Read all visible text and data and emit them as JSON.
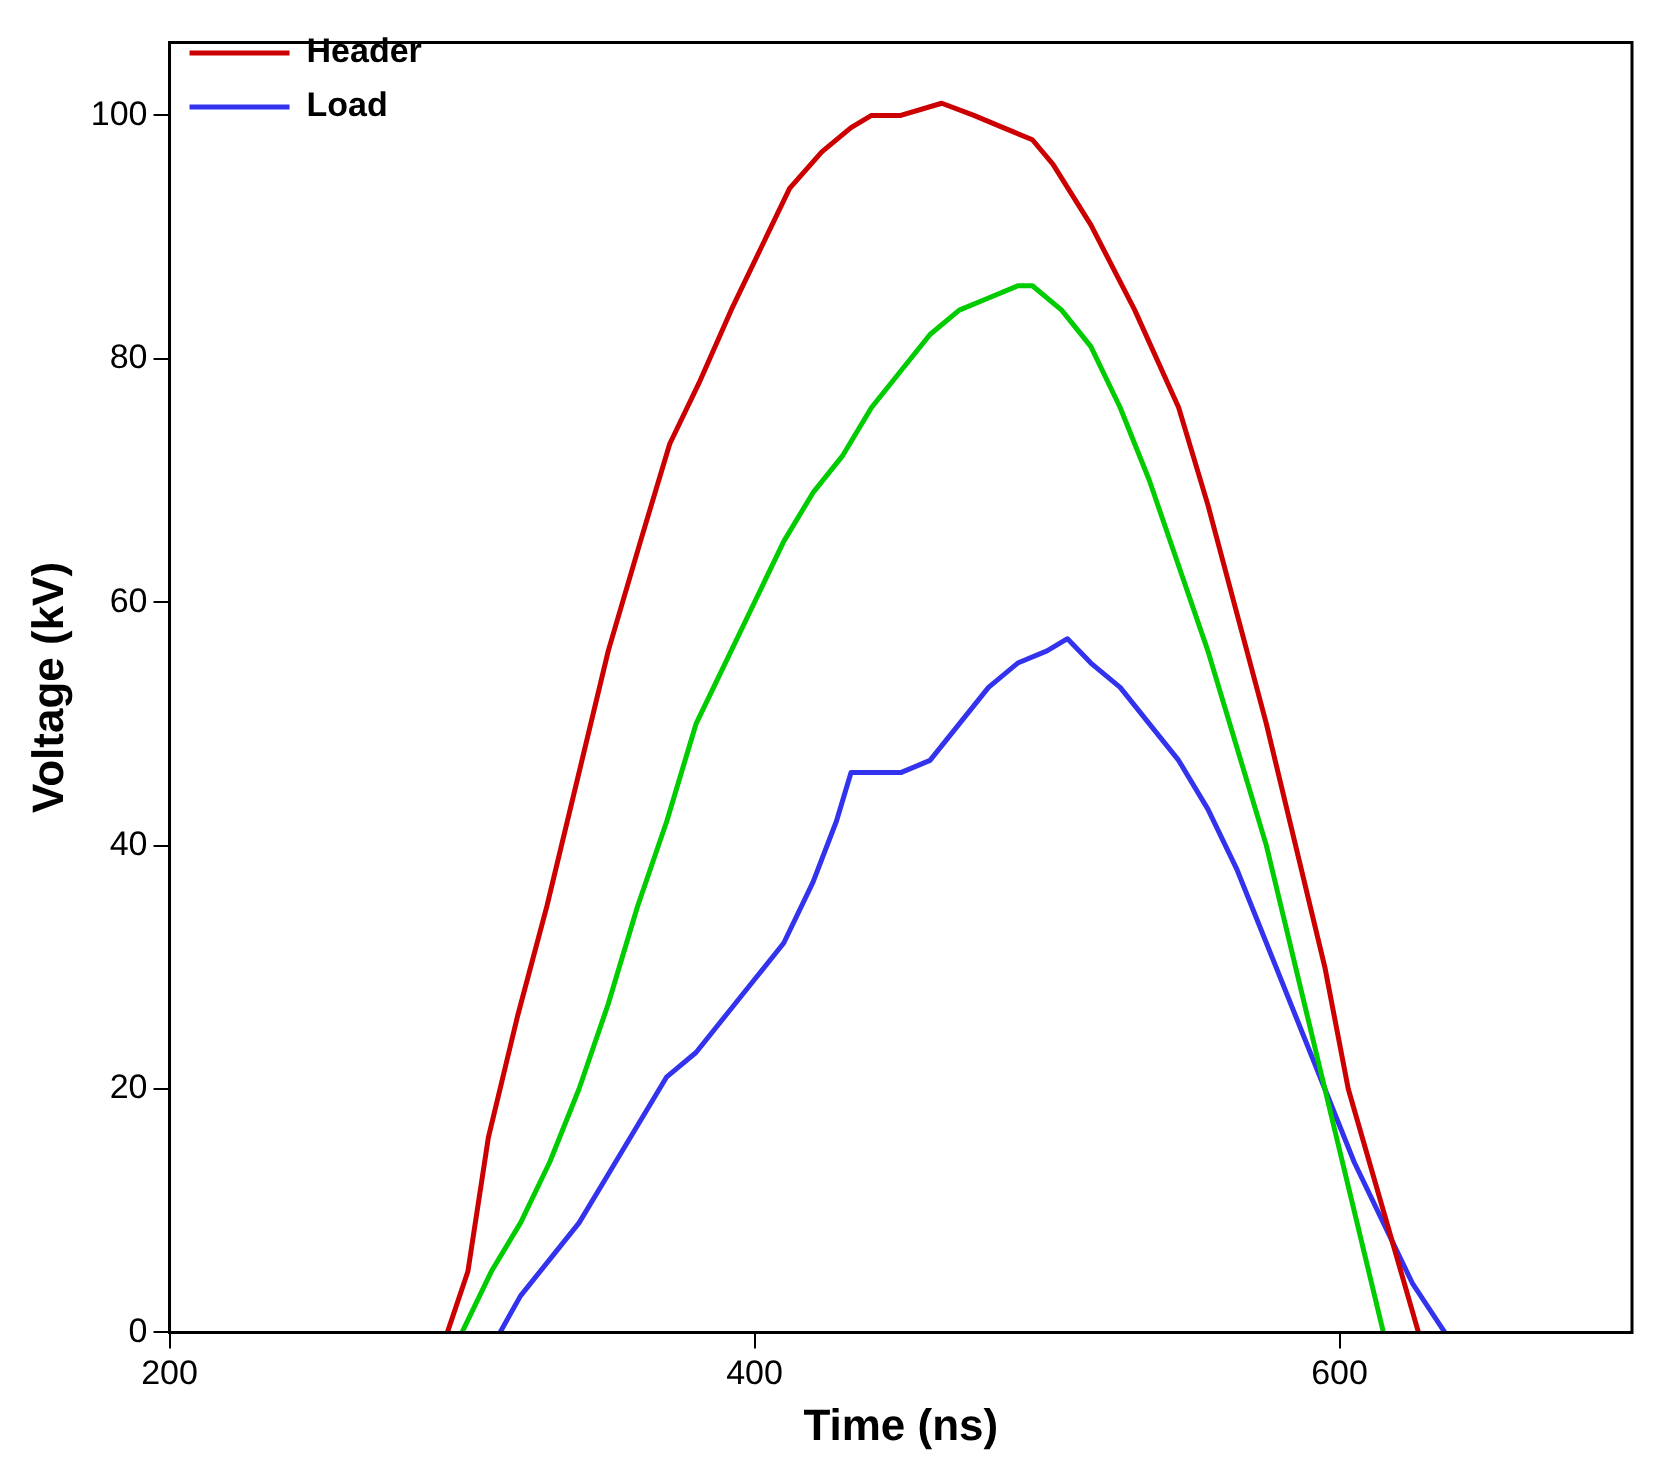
{
  "chart_data": {
    "type": "line",
    "xlabel": "Time (ns)",
    "ylabel": "Voltage (kV)",
    "xlim": [
      200,
      700
    ],
    "xticks": [
      200,
      400,
      600
    ],
    "ylim": [
      0,
      106
    ],
    "yticks": [
      0,
      20,
      40,
      60,
      80,
      100
    ],
    "grid": false,
    "legend": "top left",
    "marker": "none",
    "line_style": "solid",
    "series": [
      {
        "name": "Header",
        "color": "#cc0000",
        "x": [
          295,
          302,
          309,
          319,
          329,
          340,
          350,
          361,
          371,
          381,
          392,
          402,
          412,
          423,
          433,
          440,
          450,
          464,
          475,
          485,
          495,
          502,
          515,
          530,
          545,
          555,
          565,
          575,
          585,
          595,
          603,
          615,
          627
        ],
        "values": [
          0,
          5,
          16,
          26,
          35,
          46,
          56,
          65,
          73,
          78,
          84,
          89,
          94,
          97,
          99,
          100,
          100,
          101,
          100,
          99,
          98,
          96,
          91,
          84,
          76,
          68,
          59,
          50,
          40,
          30,
          20,
          10,
          0
        ]
      },
      {
        "color": "#00cc00",
        "x": [
          300,
          310,
          320,
          330,
          340,
          350,
          360,
          370,
          380,
          390,
          400,
          410,
          420,
          430,
          440,
          450,
          460,
          470,
          480,
          490,
          495,
          505,
          515,
          525,
          535,
          545,
          555,
          565,
          575,
          585,
          595,
          605,
          615
        ],
        "values": [
          0,
          5,
          9,
          14,
          20,
          27,
          35,
          42,
          50,
          55,
          60,
          65,
          69,
          72,
          76,
          79,
          82,
          84,
          85,
          86,
          86,
          84,
          81,
          76,
          70,
          63,
          56,
          48,
          40,
          30,
          20,
          10,
          0
        ]
      },
      {
        "name": "Load",
        "color": "#3333ee",
        "x": [
          313,
          320,
          330,
          340,
          350,
          360,
          370,
          380,
          390,
          400,
          410,
          420,
          428,
          433,
          440,
          450,
          460,
          470,
          480,
          490,
          500,
          507,
          515,
          525,
          535,
          545,
          555,
          565,
          575,
          585,
          595,
          605,
          615,
          625,
          636
        ],
        "values": [
          0,
          3,
          6,
          9,
          13,
          17,
          21,
          23,
          26,
          29,
          32,
          37,
          42,
          46,
          46,
          46,
          47,
          50,
          53,
          55,
          56,
          57,
          55,
          53,
          50,
          47,
          43,
          38,
          32,
          26,
          20,
          14,
          9,
          4,
          0
        ]
      }
    ]
  }
}
